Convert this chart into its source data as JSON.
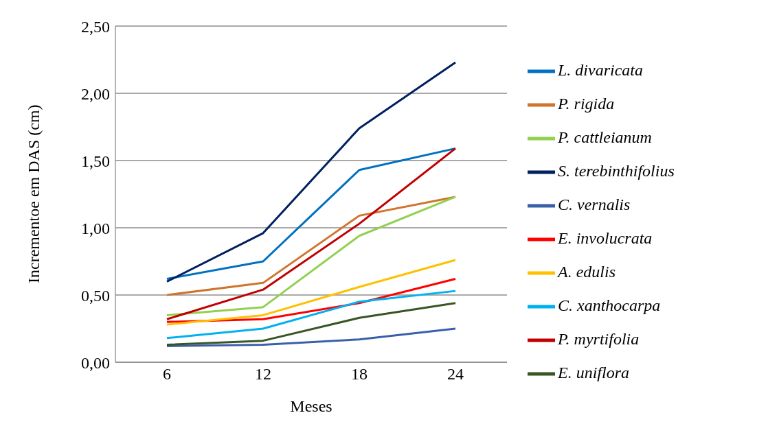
{
  "chart_data": {
    "type": "line",
    "xlabel": "Meses",
    "ylabel": "Incrementoe em DAS (cm)",
    "categories": [
      "6",
      "12",
      "18",
      "24"
    ],
    "ylim": [
      0,
      2.5
    ],
    "yticks": [
      {
        "value": 0,
        "label": "0,00"
      },
      {
        "value": 0.5,
        "label": "0,50"
      },
      {
        "value": 1,
        "label": "1,00"
      },
      {
        "value": 1.5,
        "label": "1,50"
      },
      {
        "value": 2,
        "label": "2,00"
      },
      {
        "value": 2.5,
        "label": "2,50"
      }
    ],
    "grid": "y",
    "legend": "right",
    "marker": "none",
    "line_style": "solid",
    "series": [
      {
        "name": "L. divaricata",
        "color": "#0070c0",
        "values": [
          0.62,
          0.75,
          1.43,
          1.59
        ]
      },
      {
        "name": "P. rigida",
        "color": "#d0742c",
        "values": [
          0.5,
          0.59,
          1.09,
          1.23
        ]
      },
      {
        "name": "P. cattleianum",
        "color": "#92d050",
        "values": [
          0.35,
          0.41,
          0.94,
          1.23
        ]
      },
      {
        "name": "S. terebinthifolius",
        "color": "#002060",
        "values": [
          0.6,
          0.96,
          1.74,
          2.23
        ]
      },
      {
        "name": "C. vernalis",
        "color": "#3a5faa",
        "values": [
          0.12,
          0.13,
          0.17,
          0.25
        ]
      },
      {
        "name": "E. involucrata",
        "color": "#ff0000",
        "values": [
          0.3,
          0.32,
          0.44,
          0.62
        ]
      },
      {
        "name": "A. edulis",
        "color": "#ffc000",
        "values": [
          0.28,
          0.35,
          0.56,
          0.76
        ]
      },
      {
        "name": "C. xanthocarpa",
        "color": "#00b0f0",
        "values": [
          0.18,
          0.25,
          0.45,
          0.53
        ]
      },
      {
        "name": "P. myrtifolia",
        "color": "#c00000",
        "values": [
          0.32,
          0.54,
          1.03,
          1.59
        ]
      },
      {
        "name": "E. uniflora",
        "color": "#375623",
        "values": [
          0.13,
          0.16,
          0.33,
          0.44
        ]
      }
    ]
  }
}
